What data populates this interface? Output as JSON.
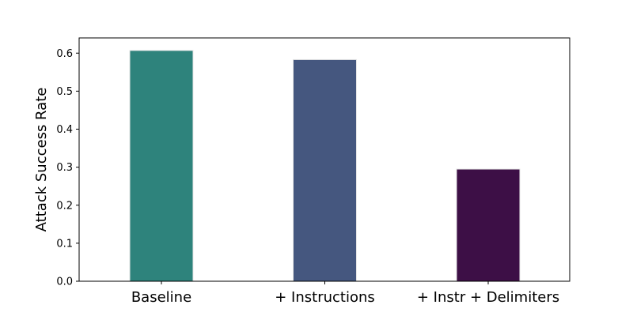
{
  "chart_data": {
    "type": "bar",
    "title": "",
    "xlabel": "",
    "ylabel": "Attack Success Rate",
    "categories": [
      "Baseline",
      "+ Instructions",
      "+ Instr + Delimiters"
    ],
    "values": [
      0.607,
      0.583,
      0.295
    ],
    "bar_colors": [
      "#2e837c",
      "#45577f",
      "#3d0f46"
    ],
    "bar_edge_color": "#e6e6e6",
    "ylim": [
      0,
      0.64
    ],
    "yticks": [
      0.0,
      0.1,
      0.2,
      0.3,
      0.4,
      0.5,
      0.6
    ],
    "ytick_labels": [
      "0.0",
      "0.1",
      "0.2",
      "0.3",
      "0.4",
      "0.5",
      "0.6"
    ],
    "grid": false,
    "legend": "none"
  }
}
